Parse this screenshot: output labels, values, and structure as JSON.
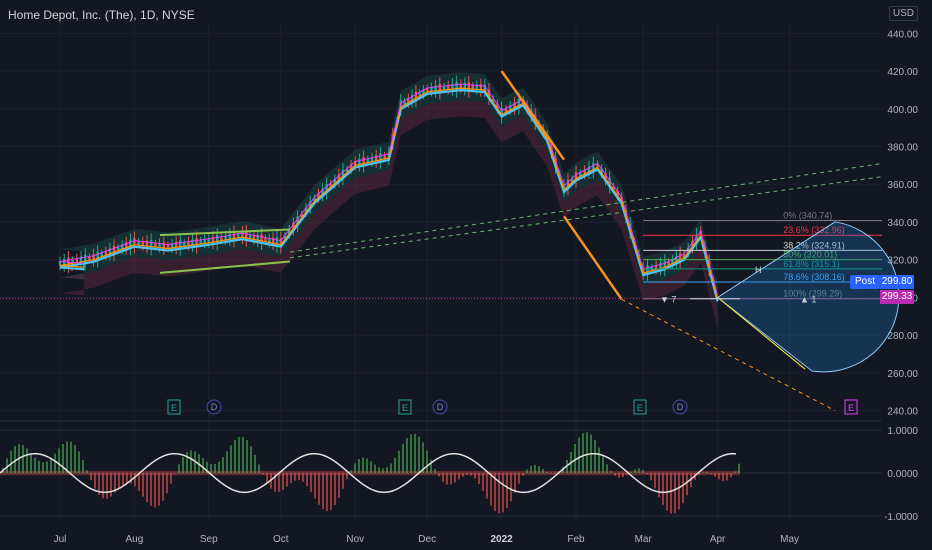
{
  "header": {
    "symbol_title": "Home Depot, Inc. (The), 1D, NYSE",
    "currency": "USD"
  },
  "price_labels": {
    "post_tag": "Post",
    "post_price": "299.80",
    "last_price": "299.33"
  },
  "colors": {
    "background": "#131722",
    "grid": "#1e222d",
    "candle_up": "#26a69a",
    "candle_down": "#ef5350",
    "fib_arrow": "#f7931e",
    "post_badge": "#2962ff",
    "last_badge": "#b82bb0",
    "bear_band": "#7b2d4a",
    "bull_band": "#1e5c52"
  },
  "chart_data": {
    "type": "line",
    "title": "Home Depot, Inc. (The), 1D, NYSE",
    "x_axis": {
      "tick_labels": [
        "Jul",
        "Aug",
        "Sep",
        "Oct",
        "Nov",
        "Dec",
        "2022",
        "Feb",
        "Mar",
        "Apr",
        "May"
      ]
    },
    "y_axis": {
      "tick_labels": [
        "440.00",
        "420.00",
        "400.00",
        "380.00",
        "360.00",
        "340.00",
        "320.00",
        "300.00",
        "280.00",
        "260.00",
        "240.00"
      ],
      "ylim": [
        235,
        446
      ]
    },
    "series": [
      {
        "values": [
          {
            "x": "Jun 21",
            "y": 317
          },
          {
            "x": "Jul 1",
            "y": 318
          },
          {
            "x": "Jul 15",
            "y": 321
          },
          {
            "x": "Aug 1",
            "y": 329
          },
          {
            "x": "Aug 15",
            "y": 327
          },
          {
            "x": "Sep 1",
            "y": 330
          },
          {
            "x": "Sep 15",
            "y": 333
          },
          {
            "x": "Oct 1",
            "y": 329
          },
          {
            "x": "Oct 15",
            "y": 352
          },
          {
            "x": "Nov 1",
            "y": 371
          },
          {
            "x": "Nov 15",
            "y": 375
          },
          {
            "x": "Nov 20",
            "y": 402
          },
          {
            "x": "Dec 1",
            "y": 410
          },
          {
            "x": "Dec 15",
            "y": 412
          },
          {
            "x": "Dec 25",
            "y": 411
          },
          {
            "x": "Jan 1",
            "y": 398
          },
          {
            "x": "Jan 10",
            "y": 404
          },
          {
            "x": "Jan 20",
            "y": 385
          },
          {
            "x": "Jan 27",
            "y": 358
          },
          {
            "x": "Feb 1",
            "y": 364
          },
          {
            "x": "Feb 10",
            "y": 370
          },
          {
            "x": "Feb 20",
            "y": 352
          },
          {
            "x": "Mar 1",
            "y": 314
          },
          {
            "x": "Mar 10",
            "y": 317
          },
          {
            "x": "Mar 18",
            "y": 322
          },
          {
            "x": "Mar 25",
            "y": 334
          },
          {
            "x": "Apr 1",
            "y": 300
          }
        ]
      }
    ],
    "fib_levels": [
      {
        "label": "0% (340.74)",
        "value": 340.74,
        "color": "#787b86"
      },
      {
        "label": "23.6% (332.96)",
        "value": 332.96,
        "color": "#f23645"
      },
      {
        "label": "38.2% (324.91)",
        "value": 324.91,
        "color": "#cfcfcf"
      },
      {
        "label": "50% (320.01)",
        "value": 320.01,
        "color": "#4caf50"
      },
      {
        "label": "61.8% (315.1)",
        "value": 315.1,
        "color": "#089981"
      },
      {
        "label": "78.6% (308.16)",
        "value": 308.16,
        "color": "#42a5f5"
      },
      {
        "label": "100% (299.29)",
        "value": 299.29,
        "color": "#787b86"
      }
    ],
    "markers": {
      "earnings": [
        "E",
        "E",
        "E",
        "E"
      ],
      "dividends": [
        "D",
        "D",
        "D"
      ],
      "bars_count": [
        "7",
        "1"
      ],
      "high_tag": "H"
    },
    "oscillator": {
      "tick_labels": [
        "1.0000",
        "0.0000",
        "-1.0000"
      ],
      "ylim": [
        -1.1,
        1.1
      ]
    }
  }
}
